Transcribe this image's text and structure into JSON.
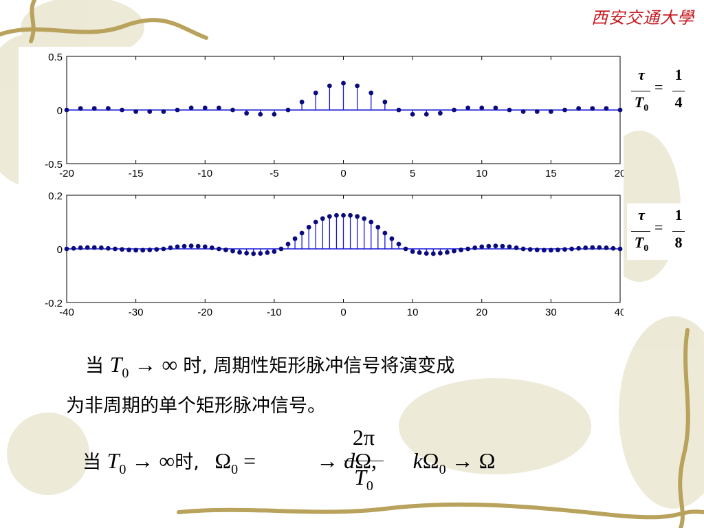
{
  "header": {
    "logo_text": "西安交通大學"
  },
  "colors": {
    "stem": "#1515d8",
    "marker": "#0b0b80",
    "logo": "#c4161c",
    "vine": "#b8a25c"
  },
  "chart_data": [
    {
      "type": "stem",
      "xlim": [
        -20,
        20
      ],
      "ylim": [
        -0.5,
        0.5
      ],
      "xticks": [
        "-20",
        "-15",
        "-10",
        "-5",
        "0",
        "5",
        "10",
        "15",
        "20"
      ],
      "yticks": [
        "0.5",
        "0",
        "-0.5"
      ],
      "x": [
        -20,
        -19,
        -18,
        -17,
        -16,
        -15,
        -14,
        -13,
        -12,
        -11,
        -10,
        -9,
        -8,
        -7,
        -6,
        -5,
        -4,
        -3,
        -2,
        -1,
        0,
        1,
        2,
        3,
        4,
        5,
        6,
        7,
        8,
        9,
        10,
        11,
        12,
        13,
        14,
        15,
        16,
        17,
        18,
        19,
        20
      ],
      "values": [
        0,
        0.015,
        0.015,
        0.015,
        0,
        -0.015,
        -0.015,
        -0.015,
        0,
        0.02,
        0.02,
        0.02,
        0,
        -0.03,
        -0.04,
        -0.04,
        0,
        0.075,
        0.16,
        0.225,
        0.25,
        0.225,
        0.16,
        0.075,
        0,
        -0.04,
        -0.04,
        -0.03,
        0,
        0.02,
        0.02,
        0.02,
        0,
        -0.015,
        -0.015,
        -0.015,
        0,
        0.015,
        0.015,
        0.015,
        0
      ]
    },
    {
      "type": "stem",
      "xlim": [
        -40,
        40
      ],
      "ylim": [
        -0.2,
        0.2
      ],
      "xticks": [
        "-40",
        "-30",
        "-20",
        "-10",
        "0",
        "10",
        "20",
        "30",
        "40"
      ],
      "yticks": [
        "0.2",
        "0",
        "-0.2"
      ],
      "x": [
        -40,
        -39,
        -38,
        -37,
        -36,
        -35,
        -34,
        -33,
        -32,
        -31,
        -30,
        -29,
        -28,
        -27,
        -26,
        -25,
        -24,
        -23,
        -22,
        -21,
        -20,
        -19,
        -18,
        -17,
        -16,
        -15,
        -14,
        -13,
        -12,
        -11,
        -10,
        -9,
        -8,
        -7,
        -6,
        -5,
        -4,
        -3,
        -2,
        -1,
        0,
        1,
        2,
        3,
        4,
        5,
        6,
        7,
        8,
        9,
        10,
        11,
        12,
        13,
        14,
        15,
        16,
        17,
        18,
        19,
        20,
        21,
        22,
        23,
        24,
        25,
        26,
        27,
        28,
        29,
        30,
        31,
        32,
        33,
        34,
        35,
        36,
        37,
        38,
        39,
        40
      ],
      "values": [
        0,
        0.002,
        0.004,
        0.005,
        0.005,
        0.004,
        0.002,
        0,
        -0.002,
        -0.004,
        -0.005,
        -0.005,
        -0.004,
        -0.002,
        0,
        0.004,
        0.008,
        0.01,
        0.011,
        0.01,
        0.008,
        0.004,
        0,
        -0.004,
        -0.008,
        -0.013,
        -0.016,
        -0.018,
        -0.017,
        -0.014,
        -0.01,
        0,
        0.018,
        0.038,
        0.059,
        0.081,
        0.1,
        0.113,
        0.121,
        0.125,
        0.125,
        0.125,
        0.121,
        0.113,
        0.1,
        0.081,
        0.059,
        0.038,
        0.018,
        0,
        -0.01,
        -0.014,
        -0.017,
        -0.018,
        -0.016,
        -0.013,
        -0.008,
        -0.004,
        0,
        0.004,
        0.008,
        0.01,
        0.011,
        0.01,
        0.008,
        0.004,
        0,
        -0.002,
        -0.004,
        -0.005,
        -0.005,
        -0.004,
        -0.002,
        0,
        0.002,
        0.004,
        0.005,
        0.005,
        0.004,
        0.002,
        0
      ]
    }
  ],
  "annotations": [
    {
      "tau": "τ",
      "T": "T",
      "sub": "0",
      "eq": "=",
      "num": "1",
      "den": "4"
    },
    {
      "tau": "τ",
      "T": "T",
      "sub": "0",
      "eq": "=",
      "num": "1",
      "den": "8"
    }
  ],
  "text": {
    "line1_prefix": "当",
    "line1_math_T": "T",
    "line1_math_sub": "0",
    "line1_math_arrow": " → ∞ ",
    "line1_suffix": "时, 周期性矩形脉冲信号将演变成",
    "line2": "为非周期的单个矩形脉冲信号。",
    "line3_prefix": "当",
    "line3_math_T": "T",
    "line3_math_sub": "0",
    "line3_math_arrow": " → ∞",
    "line3_shi": "时,",
    "line3_omega": "Ω",
    "line3_omega_sub": "0",
    "line3_eq": " = ",
    "frac_num": "2π",
    "frac_den": "T",
    "frac_den_sub": "0",
    "line3_after_frac": " → ",
    "line3_d": "d",
    "line3_domega": "Ω,",
    "line3_k": "k",
    "line3_komega": "Ω",
    "line3_komega_sub": "0",
    "line3_final": " → Ω"
  }
}
